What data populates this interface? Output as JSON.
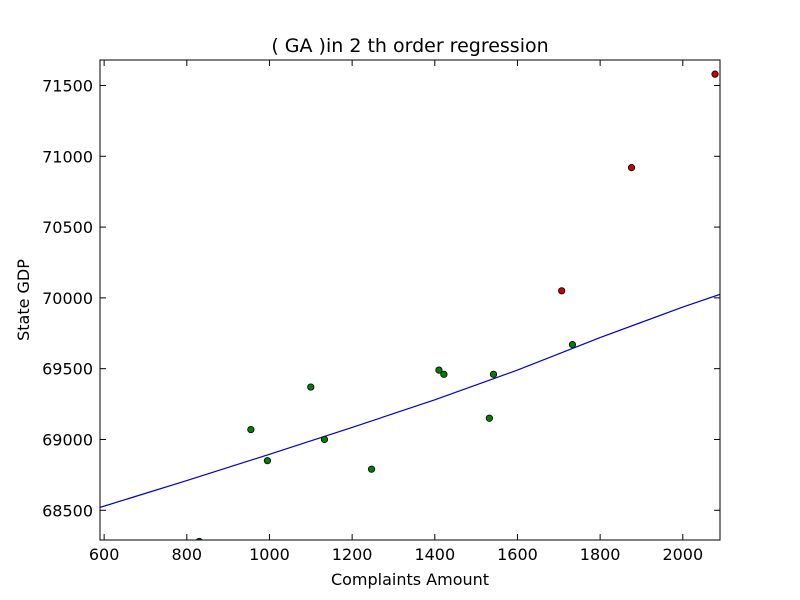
{
  "chart_data": {
    "type": "scatter",
    "title": "(  GA  )in 2 th order regression",
    "xlabel": "Complaints Amount",
    "ylabel": "State GDP",
    "xlim": [
      590,
      2090
    ],
    "ylim": [
      68290,
      71680
    ],
    "xticks": [
      600,
      800,
      1000,
      1200,
      1400,
      1600,
      1800,
      2000
    ],
    "yticks": [
      68500,
      69000,
      69500,
      70000,
      70500,
      71000,
      71500
    ],
    "grid": false,
    "legend": "none",
    "colors": {
      "fit_line": "#0000cc",
      "train_points": "#007f00",
      "test_points": "#cc0000",
      "axes": "#000000"
    },
    "series": [
      {
        "kind": "points",
        "color": "#007f00",
        "points": [
          [
            830,
            68280
          ],
          [
            955,
            69070
          ],
          [
            995,
            68850
          ],
          [
            1100,
            69370
          ],
          [
            1133,
            69000
          ],
          [
            1247,
            68790
          ],
          [
            1410,
            69490
          ],
          [
            1422,
            69460
          ],
          [
            1532,
            69150
          ],
          [
            1542,
            69460
          ],
          [
            1733,
            69670
          ]
        ]
      },
      {
        "kind": "points",
        "color": "#cc0000",
        "points": [
          [
            1707,
            70050
          ],
          [
            1876,
            70920
          ],
          [
            2078,
            71580
          ]
        ]
      },
      {
        "kind": "line",
        "color": "#0000cc",
        "points": [
          [
            590,
            68520
          ],
          [
            800,
            68710
          ],
          [
            1000,
            68895
          ],
          [
            1200,
            69085
          ],
          [
            1400,
            69280
          ],
          [
            1600,
            69490
          ],
          [
            1800,
            69720
          ],
          [
            2000,
            69935
          ],
          [
            2090,
            70025
          ]
        ]
      }
    ]
  }
}
